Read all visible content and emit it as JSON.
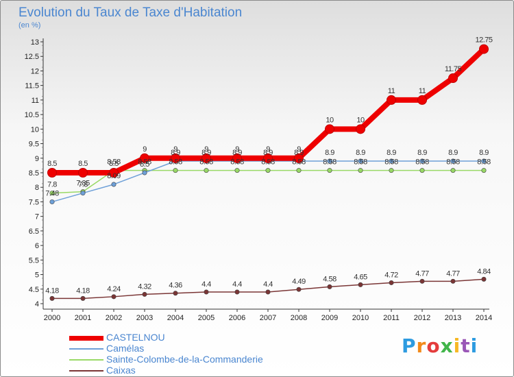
{
  "title": "Evolution du Taux de Taxe d'Habitation",
  "unit": "(en %)",
  "logo": "Proxiti",
  "colors": {
    "title": "#4a86d0",
    "castelnou": "#ee0000",
    "camelas": "#6ea0d8",
    "sainte_colombe": "#99d966",
    "caixas": "#7a3535"
  },
  "chart_data": {
    "type": "line",
    "x": [
      "2000",
      "2001",
      "2002",
      "2003",
      "2004",
      "2005",
      "2006",
      "2007",
      "2008",
      "2009",
      "2010",
      "2011",
      "2012",
      "2013",
      "2014"
    ],
    "ylim": [
      4,
      13
    ],
    "yticks": [
      "4",
      "4.5",
      "5",
      "5.5",
      "6",
      "6.5",
      "7",
      "7.5",
      "8",
      "8.5",
      "9",
      "9.5",
      "10",
      "10.5",
      "11",
      "11.5",
      "12",
      "12.5",
      "13"
    ],
    "grid": false,
    "legend_position": "bottom-left",
    "series": [
      {
        "name": "CASTELNOU",
        "key": "castelnou",
        "values": [
          8.5,
          8.5,
          8.5,
          9,
          9,
          9,
          9,
          9,
          9,
          10,
          10,
          11,
          11,
          11.75,
          12.75
        ],
        "labels": [
          "8.5",
          "8.5",
          "8.5",
          "9",
          "9",
          "9",
          "9",
          "9",
          "9",
          "10",
          "10",
          "11",
          "11",
          "11.75",
          "12.75"
        ]
      },
      {
        "name": "Camélas",
        "key": "camelas",
        "values": [
          7.5,
          7.8,
          8.1,
          8.5,
          8.9,
          8.9,
          8.9,
          8.9,
          8.9,
          8.9,
          8.9,
          8.9,
          8.9,
          8.9,
          8.9
        ],
        "labels": [
          "7.48",
          "7.8",
          "8.09",
          "8.5",
          "8.9",
          "8.9",
          "8.9",
          "8.9",
          "8.9",
          "8.9",
          "8.9",
          "8.9",
          "8.9",
          "8.9",
          "8.9"
        ]
      },
      {
        "name": "Sainte-Colombe-de-la-Commanderie",
        "key": "sainte_colombe",
        "values": [
          7.8,
          7.85,
          8.58,
          8.58,
          8.58,
          8.58,
          8.58,
          8.58,
          8.58,
          8.58,
          8.58,
          8.58,
          8.58,
          8.58,
          8.58
        ],
        "labels": [
          "7.8",
          "7.85",
          "8.58",
          "8.58",
          "8.58",
          "8.58",
          "8.58",
          "8.58",
          "8.58",
          "8.58",
          "8.58",
          "8.58",
          "8.58",
          "8.58",
          "8.58"
        ]
      },
      {
        "name": "Caixas",
        "key": "caixas",
        "values": [
          4.18,
          4.18,
          4.24,
          4.32,
          4.36,
          4.4,
          4.4,
          4.4,
          4.49,
          4.58,
          4.65,
          4.72,
          4.77,
          4.77,
          4.84
        ],
        "labels": [
          "4.18",
          "4.18",
          "4.24",
          "4.32",
          "4.36",
          "4.4",
          "4.4",
          "4.4",
          "4.49",
          "4.58",
          "4.65",
          "4.72",
          "4.77",
          "4.77",
          "4.84"
        ]
      }
    ]
  }
}
